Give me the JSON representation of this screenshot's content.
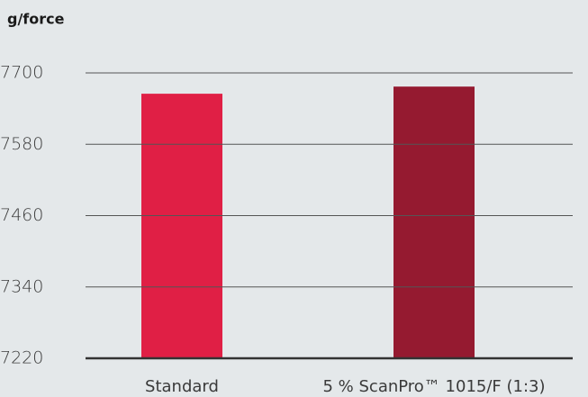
{
  "chart_data": {
    "type": "bar",
    "title": "g/force",
    "categories": [
      "Standard",
      "5 % ScanPro™ 1015/F (1:3)"
    ],
    "values": [
      7665,
      7677
    ],
    "colors": [
      "#e01f45",
      "#951a30"
    ],
    "ylim": [
      7220,
      7700
    ],
    "yticks": [
      7220,
      7340,
      7460,
      7580,
      7700
    ],
    "grid": true
  }
}
